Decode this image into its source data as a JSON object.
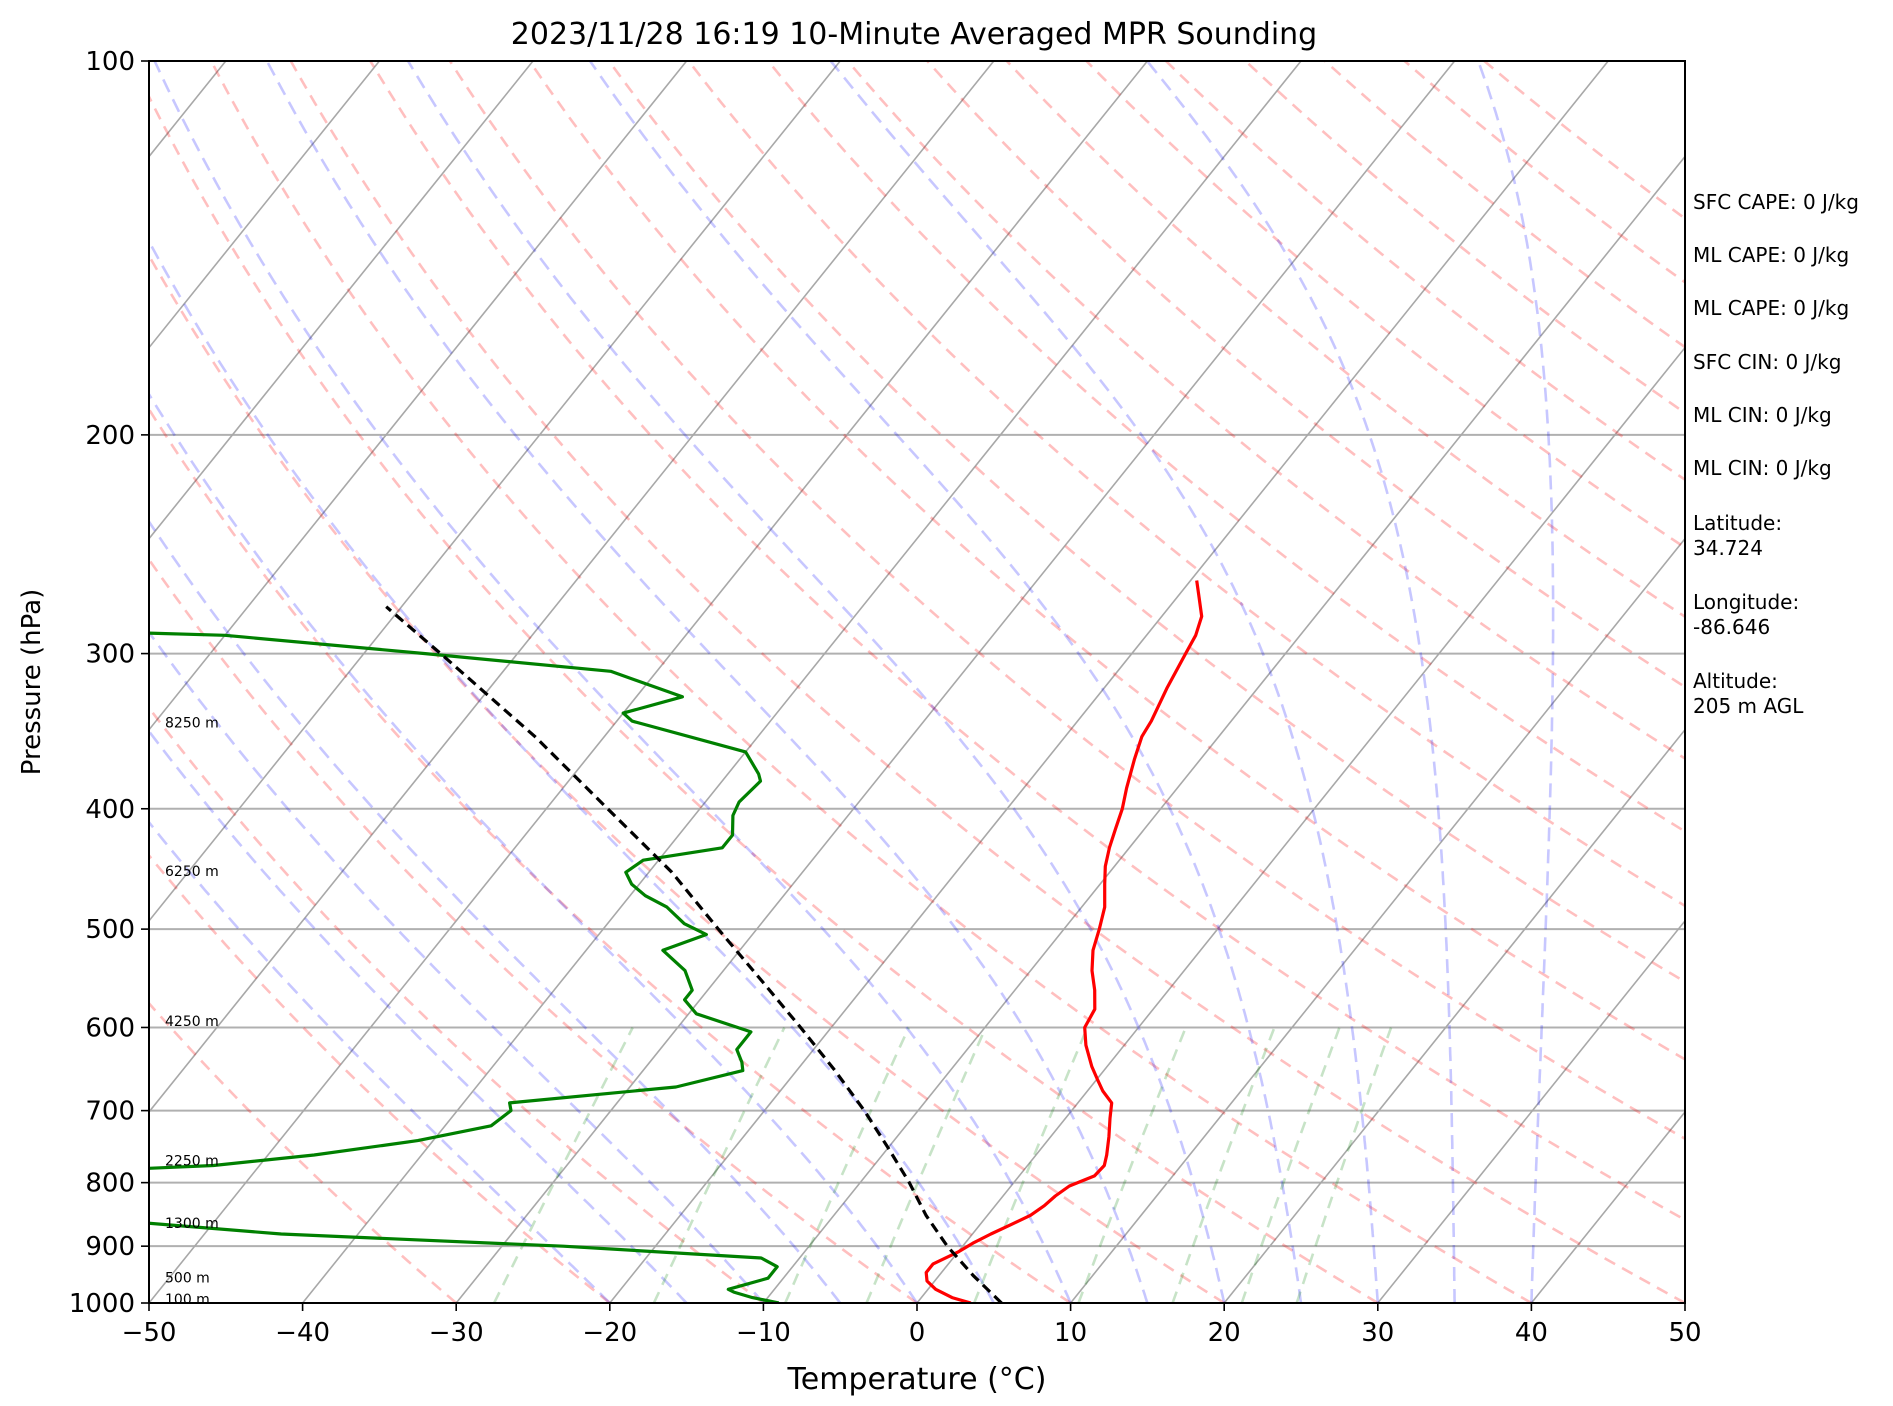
{
  "chart_data": {
    "type": "skew-t",
    "title": "2023/11/28 16:19 10-Minute Averaged MPR Sounding",
    "xlabel": "Temperature (°C)",
    "ylabel": "Pressure (hPa)",
    "xlim": [
      -50,
      50
    ],
    "ylim": [
      1000,
      100
    ],
    "y_scale": "log",
    "skew_degrees_per_decade": 65,
    "x_ticks": [
      -50,
      -40,
      -30,
      -20,
      -10,
      0,
      10,
      20,
      30,
      40,
      50
    ],
    "x_tick_labels": [
      "−50",
      "−40",
      "−30",
      "−20",
      "−10",
      "0",
      "10",
      "20",
      "30",
      "40",
      "50"
    ],
    "y_ticks": [
      100,
      200,
      300,
      400,
      500,
      600,
      700,
      800,
      900,
      1000
    ],
    "y_tick_labels": [
      "100",
      "200",
      "300",
      "400",
      "500",
      "600",
      "700",
      "800",
      "900",
      "1000"
    ],
    "grid": true,
    "series": [
      {
        "role": "temperature",
        "color": "#ff0000",
        "points": [
          [
            1000,
            3.5
          ],
          [
            990,
            2
          ],
          [
            975,
            0.5
          ],
          [
            960,
            -0.5
          ],
          [
            945,
            -1
          ],
          [
            930,
            -1
          ],
          [
            910,
            0
          ],
          [
            895,
            0.5
          ],
          [
            880,
            1.2
          ],
          [
            865,
            2
          ],
          [
            850,
            2.8
          ],
          [
            835,
            3.2
          ],
          [
            820,
            3.4
          ],
          [
            805,
            3.8
          ],
          [
            790,
            4.9
          ],
          [
            775,
            5
          ],
          [
            760,
            4.6
          ],
          [
            735,
            3.8
          ],
          [
            710,
            2.9
          ],
          [
            690,
            2.2
          ],
          [
            675,
            1
          ],
          [
            660,
            0
          ],
          [
            645,
            -1
          ],
          [
            620,
            -2.5
          ],
          [
            600,
            -3.5
          ],
          [
            580,
            -3.8
          ],
          [
            560,
            -4.8
          ],
          [
            540,
            -6
          ],
          [
            520,
            -7
          ],
          [
            500,
            -7.7
          ],
          [
            480,
            -8.5
          ],
          [
            460,
            -9.7
          ],
          [
            445,
            -10.6
          ],
          [
            430,
            -11.3
          ],
          [
            415,
            -11.9
          ],
          [
            400,
            -12.5
          ],
          [
            385,
            -13.3
          ],
          [
            365,
            -14.3
          ],
          [
            350,
            -15
          ],
          [
            340,
            -15.2
          ],
          [
            320,
            -15.9
          ],
          [
            300,
            -16.5
          ],
          [
            290,
            -16.8
          ],
          [
            280,
            -17.4
          ],
          [
            270,
            -18.6
          ],
          [
            262,
            -19.6
          ]
        ]
      },
      {
        "role": "dewpoint",
        "color": "#008000",
        "points": [
          [
            1000,
            -9
          ],
          [
            990,
            -11
          ],
          [
            980,
            -12.5
          ],
          [
            975,
            -13
          ],
          [
            970,
            -12.5
          ],
          [
            955,
            -11
          ],
          [
            935,
            -11
          ],
          [
            920,
            -12.5
          ],
          [
            900,
            -26
          ],
          [
            880,
            -45
          ],
          [
            850,
            -61
          ],
          [
            840,
            -61
          ],
          [
            810,
            -61
          ],
          [
            785,
            -63
          ],
          [
            775,
            -53
          ],
          [
            760,
            -47
          ],
          [
            740,
            -41
          ],
          [
            720,
            -37
          ],
          [
            700,
            -36.5
          ],
          [
            690,
            -37
          ],
          [
            670,
            -27
          ],
          [
            650,
            -23.5
          ],
          [
            640,
            -24
          ],
          [
            625,
            -25
          ],
          [
            605,
            -25
          ],
          [
            585,
            -29.5
          ],
          [
            570,
            -31
          ],
          [
            560,
            -31
          ],
          [
            540,
            -32.5
          ],
          [
            520,
            -35
          ],
          [
            505,
            -33
          ],
          [
            495,
            -35
          ],
          [
            480,
            -37
          ],
          [
            470,
            -39
          ],
          [
            460,
            -40.5
          ],
          [
            450,
            -41.5
          ],
          [
            440,
            -41
          ],
          [
            430,
            -36.5
          ],
          [
            420,
            -36.5
          ],
          [
            405,
            -37.5
          ],
          [
            395,
            -37.8
          ],
          [
            380,
            -37.5
          ],
          [
            375,
            -38
          ],
          [
            360,
            -40
          ],
          [
            340,
            -49
          ],
          [
            335,
            -50
          ],
          [
            325,
            -47
          ],
          [
            310,
            -53
          ],
          [
            300,
            -66
          ],
          [
            290,
            -80
          ],
          [
            287,
            -93
          ],
          [
            286,
            -150
          ]
        ]
      },
      {
        "role": "parcel",
        "color": "#000000",
        "style": "dashed",
        "points": [
          [
            1000,
            5.5
          ],
          [
            950,
            2.2
          ],
          [
            900,
            -1
          ],
          [
            850,
            -4
          ],
          [
            800,
            -6.8
          ],
          [
            750,
            -10
          ],
          [
            700,
            -13.5
          ],
          [
            650,
            -17.5
          ],
          [
            600,
            -22
          ],
          [
            550,
            -27
          ],
          [
            500,
            -32.5
          ],
          [
            450,
            -38.5
          ],
          [
            400,
            -46
          ],
          [
            350,
            -54.5
          ],
          [
            300,
            -65
          ],
          [
            275,
            -71
          ]
        ]
      }
    ],
    "height_labels": [
      {
        "p": 341,
        "label": "8250 m"
      },
      {
        "p": 449,
        "label": "6250 m"
      },
      {
        "p": 593,
        "label": "4250 m"
      },
      {
        "p": 768,
        "label": "2250 m"
      },
      {
        "p": 862,
        "label": "1300 m"
      },
      {
        "p": 954,
        "label": "500 m"
      },
      {
        "p": 993,
        "label": "100 m"
      }
    ]
  },
  "info": {
    "sfc_cape": "SFC CAPE: 0 J/kg",
    "ml_cape_1": "ML CAPE: 0 J/kg",
    "ml_cape_2": "ML CAPE: 0 J/kg",
    "sfc_cin": "SFC CIN: 0 J/kg",
    "ml_cin_1": "ML CIN: 0 J/kg",
    "ml_cin_2": "ML CIN: 0 J/kg",
    "latitude": "Latitude:\n34.724",
    "longitude": "Longitude:\n-86.646",
    "altitude": "Altitude:\n205 m AGL"
  }
}
